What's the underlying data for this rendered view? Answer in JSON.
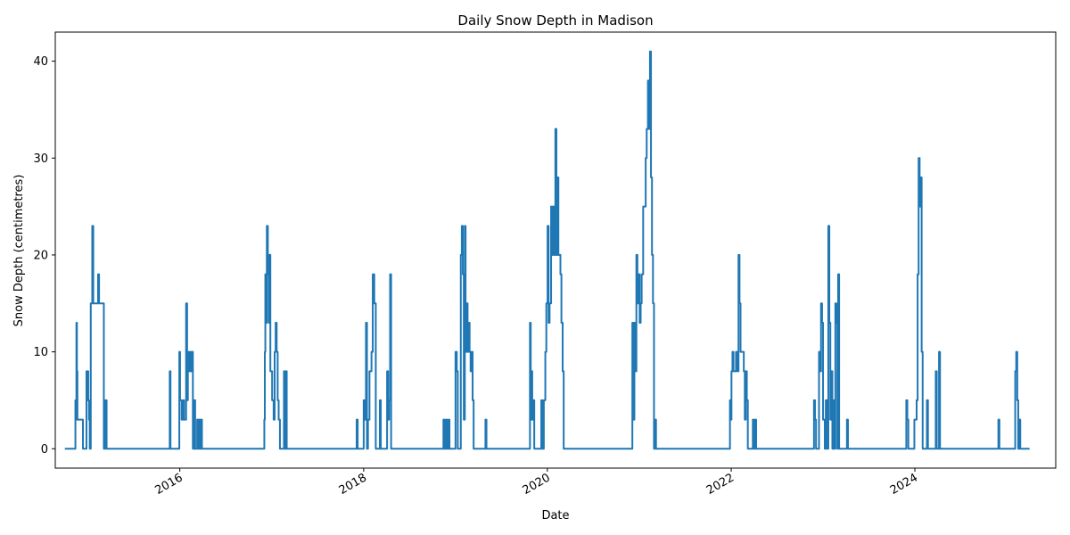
{
  "chart_data": {
    "type": "line",
    "title": "Daily Snow Depth in Madison",
    "xlabel": "Date",
    "ylabel": "Snow Depth (centimetres)",
    "xlim": [
      "2014-08-24",
      "2025-07-14"
    ],
    "ylim": [
      -2,
      43
    ],
    "grid": false,
    "line_color": "#1f77b4",
    "y_ticks": [
      0,
      10,
      20,
      30,
      40
    ],
    "x_ticks": [
      {
        "date": "2016-01-01",
        "label": "2016"
      },
      {
        "date": "2018-01-01",
        "label": "2018"
      },
      {
        "date": "2020-01-01",
        "label": "2020"
      },
      {
        "date": "2022-01-01",
        "label": "2022"
      },
      {
        "date": "2024-01-01",
        "label": "2024"
      }
    ],
    "series": [
      {
        "points": [
          [
            "2014-10-01",
            0
          ],
          [
            "2014-11-10",
            0
          ],
          [
            "2014-11-12",
            5
          ],
          [
            "2014-11-14",
            3
          ],
          [
            "2014-11-16",
            13
          ],
          [
            "2014-11-18",
            8
          ],
          [
            "2014-11-20",
            3
          ],
          [
            "2014-11-26",
            3
          ],
          [
            "2014-12-12",
            0
          ],
          [
            "2014-12-24",
            0
          ],
          [
            "2014-12-26",
            8
          ],
          [
            "2014-12-28",
            5
          ],
          [
            "2014-12-30",
            8
          ],
          [
            "2015-01-02",
            5
          ],
          [
            "2015-01-05",
            3
          ],
          [
            "2015-01-08",
            0
          ],
          [
            "2015-01-12",
            15
          ],
          [
            "2015-01-18",
            23
          ],
          [
            "2015-01-22",
            15
          ],
          [
            "2015-02-10",
            18
          ],
          [
            "2015-02-14",
            15
          ],
          [
            "2015-02-28",
            15
          ],
          [
            "2015-03-05",
            0
          ],
          [
            "2015-03-12",
            5
          ],
          [
            "2015-03-16",
            0
          ],
          [
            "2015-11-18",
            0
          ],
          [
            "2015-11-22",
            8
          ],
          [
            "2015-11-25",
            0
          ],
          [
            "2015-12-28",
            0
          ],
          [
            "2015-12-30",
            10
          ],
          [
            "2016-01-02",
            5
          ],
          [
            "2016-01-08",
            3
          ],
          [
            "2016-01-14",
            5
          ],
          [
            "2016-01-18",
            3
          ],
          [
            "2016-01-22",
            3
          ],
          [
            "2016-01-26",
            15
          ],
          [
            "2016-01-30",
            5
          ],
          [
            "2016-02-02",
            10
          ],
          [
            "2016-02-06",
            8
          ],
          [
            "2016-02-10",
            10
          ],
          [
            "2016-02-14",
            8
          ],
          [
            "2016-02-18",
            10
          ],
          [
            "2016-02-22",
            0
          ],
          [
            "2016-02-26",
            5
          ],
          [
            "2016-03-02",
            0
          ],
          [
            "2016-03-10",
            3
          ],
          [
            "2016-03-14",
            0
          ],
          [
            "2016-03-18",
            3
          ],
          [
            "2016-03-22",
            0
          ],
          [
            "2016-03-26",
            3
          ],
          [
            "2016-03-29",
            0
          ],
          [
            "2016-11-28",
            0
          ],
          [
            "2016-12-02",
            3
          ],
          [
            "2016-12-04",
            10
          ],
          [
            "2016-12-06",
            18
          ],
          [
            "2016-12-08",
            13
          ],
          [
            "2016-12-12",
            23
          ],
          [
            "2016-12-16",
            18
          ],
          [
            "2016-12-20",
            13
          ],
          [
            "2016-12-22",
            20
          ],
          [
            "2016-12-26",
            8
          ],
          [
            "2017-01-02",
            5
          ],
          [
            "2017-01-08",
            3
          ],
          [
            "2017-01-12",
            10
          ],
          [
            "2017-01-16",
            13
          ],
          [
            "2017-01-20",
            10
          ],
          [
            "2017-01-24",
            5
          ],
          [
            "2017-01-28",
            3
          ],
          [
            "2017-02-02",
            0
          ],
          [
            "2017-02-14",
            0
          ],
          [
            "2017-02-18",
            8
          ],
          [
            "2017-02-22",
            0
          ],
          [
            "2017-02-26",
            8
          ],
          [
            "2017-03-01",
            0
          ],
          [
            "2017-12-01",
            0
          ],
          [
            "2017-12-04",
            3
          ],
          [
            "2017-12-08",
            0
          ],
          [
            "2017-12-28",
            0
          ],
          [
            "2018-01-01",
            5
          ],
          [
            "2018-01-05",
            3
          ],
          [
            "2018-01-10",
            13
          ],
          [
            "2018-01-14",
            0
          ],
          [
            "2018-01-18",
            3
          ],
          [
            "2018-01-24",
            8
          ],
          [
            "2018-02-01",
            10
          ],
          [
            "2018-02-06",
            18
          ],
          [
            "2018-02-12",
            15
          ],
          [
            "2018-02-18",
            0
          ],
          [
            "2018-03-01",
            0
          ],
          [
            "2018-03-06",
            5
          ],
          [
            "2018-03-10",
            0
          ],
          [
            "2018-03-30",
            0
          ],
          [
            "2018-04-04",
            8
          ],
          [
            "2018-04-08",
            3
          ],
          [
            "2018-04-12",
            5
          ],
          [
            "2018-04-16",
            18
          ],
          [
            "2018-04-20",
            0
          ],
          [
            "2018-11-10",
            0
          ],
          [
            "2018-11-14",
            3
          ],
          [
            "2018-11-18",
            0
          ],
          [
            "2018-11-24",
            3
          ],
          [
            "2018-11-28",
            0
          ],
          [
            "2018-12-04",
            3
          ],
          [
            "2018-12-08",
            0
          ],
          [
            "2018-12-28",
            0
          ],
          [
            "2019-01-01",
            10
          ],
          [
            "2019-01-06",
            8
          ],
          [
            "2019-01-10",
            0
          ],
          [
            "2019-01-18",
            0
          ],
          [
            "2019-01-22",
            20
          ],
          [
            "2019-01-26",
            23
          ],
          [
            "2019-01-30",
            18
          ],
          [
            "2019-02-03",
            3
          ],
          [
            "2019-02-07",
            23
          ],
          [
            "2019-02-10",
            10
          ],
          [
            "2019-02-14",
            15
          ],
          [
            "2019-02-18",
            10
          ],
          [
            "2019-02-22",
            13
          ],
          [
            "2019-02-26",
            10
          ],
          [
            "2019-03-02",
            8
          ],
          [
            "2019-03-06",
            10
          ],
          [
            "2019-03-10",
            5
          ],
          [
            "2019-03-14",
            0
          ],
          [
            "2019-04-26",
            0
          ],
          [
            "2019-04-30",
            3
          ],
          [
            "2019-05-04",
            0
          ],
          [
            "2019-10-20",
            0
          ],
          [
            "2019-10-24",
            13
          ],
          [
            "2019-10-27",
            3
          ],
          [
            "2019-10-30",
            8
          ],
          [
            "2019-11-02",
            3
          ],
          [
            "2019-11-06",
            5
          ],
          [
            "2019-11-10",
            0
          ],
          [
            "2019-12-04",
            0
          ],
          [
            "2019-12-08",
            5
          ],
          [
            "2019-12-12",
            0
          ],
          [
            "2019-12-18",
            5
          ],
          [
            "2019-12-24",
            10
          ],
          [
            "2019-12-28",
            15
          ],
          [
            "2020-01-02",
            23
          ],
          [
            "2020-01-06",
            13
          ],
          [
            "2020-01-10",
            15
          ],
          [
            "2020-01-16",
            25
          ],
          [
            "2020-01-20",
            20
          ],
          [
            "2020-01-24",
            25
          ],
          [
            "2020-01-28",
            20
          ],
          [
            "2020-02-02",
            33
          ],
          [
            "2020-02-06",
            20
          ],
          [
            "2020-02-10",
            28
          ],
          [
            "2020-02-14",
            20
          ],
          [
            "2020-02-18",
            20
          ],
          [
            "2020-02-22",
            18
          ],
          [
            "2020-02-26",
            13
          ],
          [
            "2020-03-02",
            8
          ],
          [
            "2020-03-06",
            0
          ],
          [
            "2020-11-30",
            0
          ],
          [
            "2020-12-04",
            13
          ],
          [
            "2020-12-08",
            3
          ],
          [
            "2020-12-12",
            13
          ],
          [
            "2020-12-16",
            8
          ],
          [
            "2020-12-20",
            20
          ],
          [
            "2020-12-24",
            15
          ],
          [
            "2020-12-28",
            18
          ],
          [
            "2021-01-02",
            13
          ],
          [
            "2021-01-06",
            15
          ],
          [
            "2021-01-10",
            18
          ],
          [
            "2021-01-16",
            25
          ],
          [
            "2021-01-22",
            25
          ],
          [
            "2021-01-26",
            30
          ],
          [
            "2021-01-30",
            33
          ],
          [
            "2021-02-04",
            38
          ],
          [
            "2021-02-08",
            33
          ],
          [
            "2021-02-12",
            41
          ],
          [
            "2021-02-16",
            28
          ],
          [
            "2021-02-20",
            20
          ],
          [
            "2021-02-24",
            15
          ],
          [
            "2021-02-28",
            0
          ],
          [
            "2021-03-04",
            3
          ],
          [
            "2021-03-08",
            0
          ],
          [
            "2021-12-24",
            0
          ],
          [
            "2021-12-27",
            5
          ],
          [
            "2021-12-30",
            3
          ],
          [
            "2022-01-02",
            8
          ],
          [
            "2022-01-06",
            10
          ],
          [
            "2022-01-10",
            8
          ],
          [
            "2022-01-14",
            8
          ],
          [
            "2022-01-20",
            10
          ],
          [
            "2022-01-26",
            8
          ],
          [
            "2022-01-30",
            20
          ],
          [
            "2022-02-03",
            15
          ],
          [
            "2022-02-07",
            10
          ],
          [
            "2022-02-14",
            10
          ],
          [
            "2022-02-20",
            8
          ],
          [
            "2022-02-24",
            3
          ],
          [
            "2022-02-28",
            8
          ],
          [
            "2022-03-04",
            5
          ],
          [
            "2022-03-08",
            0
          ],
          [
            "2022-03-24",
            0
          ],
          [
            "2022-03-28",
            3
          ],
          [
            "2022-04-01",
            0
          ],
          [
            "2022-04-06",
            3
          ],
          [
            "2022-04-10",
            0
          ],
          [
            "2022-11-22",
            0
          ],
          [
            "2022-11-26",
            5
          ],
          [
            "2022-11-30",
            3
          ],
          [
            "2022-12-04",
            0
          ],
          [
            "2022-12-12",
            0
          ],
          [
            "2022-12-16",
            10
          ],
          [
            "2022-12-20",
            8
          ],
          [
            "2022-12-24",
            15
          ],
          [
            "2022-12-28",
            13
          ],
          [
            "2023-01-01",
            3
          ],
          [
            "2023-01-04",
            3
          ],
          [
            "2023-01-08",
            0
          ],
          [
            "2023-01-12",
            5
          ],
          [
            "2023-01-18",
            0
          ],
          [
            "2023-01-22",
            23
          ],
          [
            "2023-01-26",
            13
          ],
          [
            "2023-01-30",
            3
          ],
          [
            "2023-02-03",
            8
          ],
          [
            "2023-02-07",
            0
          ],
          [
            "2023-02-11",
            5
          ],
          [
            "2023-02-15",
            0
          ],
          [
            "2023-02-19",
            15
          ],
          [
            "2023-02-23",
            13
          ],
          [
            "2023-02-27",
            0
          ],
          [
            "2023-03-02",
            18
          ],
          [
            "2023-03-06",
            0
          ],
          [
            "2023-04-02",
            0
          ],
          [
            "2023-04-06",
            3
          ],
          [
            "2023-04-10",
            0
          ],
          [
            "2023-11-24",
            0
          ],
          [
            "2023-11-28",
            5
          ],
          [
            "2023-12-02",
            3
          ],
          [
            "2023-12-06",
            0
          ],
          [
            "2023-12-26",
            0
          ],
          [
            "2023-12-30",
            3
          ],
          [
            "2024-01-04",
            3
          ],
          [
            "2024-01-08",
            5
          ],
          [
            "2024-01-12",
            18
          ],
          [
            "2024-01-16",
            30
          ],
          [
            "2024-01-20",
            25
          ],
          [
            "2024-01-24",
            28
          ],
          [
            "2024-01-28",
            10
          ],
          [
            "2024-02-01",
            0
          ],
          [
            "2024-02-14",
            0
          ],
          [
            "2024-02-18",
            5
          ],
          [
            "2024-02-22",
            0
          ],
          [
            "2024-03-20",
            0
          ],
          [
            "2024-03-24",
            8
          ],
          [
            "2024-03-28",
            0
          ],
          [
            "2024-04-02",
            0
          ],
          [
            "2024-04-06",
            10
          ],
          [
            "2024-04-10",
            0
          ],
          [
            "2024-11-24",
            0
          ],
          [
            "2024-11-28",
            3
          ],
          [
            "2024-12-02",
            0
          ],
          [
            "2025-01-30",
            0
          ],
          [
            "2025-02-03",
            8
          ],
          [
            "2025-02-07",
            10
          ],
          [
            "2025-02-11",
            5
          ],
          [
            "2025-02-15",
            0
          ],
          [
            "2025-02-19",
            3
          ],
          [
            "2025-02-23",
            0
          ],
          [
            "2025-04-01",
            0
          ]
        ]
      }
    ]
  }
}
